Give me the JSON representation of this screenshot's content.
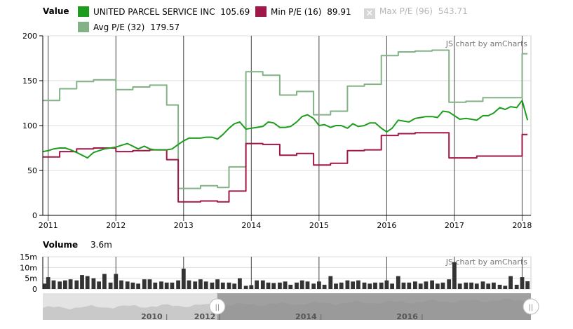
{
  "legend": {
    "value_label": "Value",
    "items": [
      {
        "label": "UNITED PARCEL SERVICE INC",
        "value": "105.69",
        "color": "#1e9c1e",
        "enabled": true
      },
      {
        "label": "Min P/E (16)",
        "value": "89.91",
        "color": "#a0174a",
        "enabled": true
      },
      {
        "label": "Max P/E (96)",
        "value": "543.71",
        "color": "#cccccc",
        "enabled": false
      },
      {
        "label": "Avg P/E (32)",
        "value": "179.57",
        "color": "#82b285",
        "enabled": true
      }
    ]
  },
  "credit": "JS chart by amCharts",
  "volume": {
    "label": "Volume",
    "value": "3.6m"
  },
  "chart_data": [
    {
      "type": "line",
      "title": "",
      "xlabel": "",
      "ylabel": "",
      "xlim": [
        2010.92,
        2018.13
      ],
      "ylim": [
        0,
        200
      ],
      "yticks": [
        "0",
        "50",
        "100",
        "150",
        "200"
      ],
      "xticks": [
        "2011",
        "2012",
        "2013",
        "2014",
        "2015",
        "2016",
        "2017",
        "2018"
      ],
      "grid": true,
      "step_series": [
        "Min P/E (16)",
        "Avg P/E (32)"
      ],
      "x": [
        2010.92,
        2011.0,
        2011.08,
        2011.17,
        2011.25,
        2011.33,
        2011.42,
        2011.5,
        2011.58,
        2011.67,
        2011.75,
        2011.83,
        2011.92,
        2012.0,
        2012.08,
        2012.17,
        2012.25,
        2012.33,
        2012.42,
        2012.5,
        2012.58,
        2012.67,
        2012.75,
        2012.83,
        2012.92,
        2013.0,
        2013.08,
        2013.17,
        2013.25,
        2013.33,
        2013.42,
        2013.5,
        2013.58,
        2013.67,
        2013.75,
        2013.83,
        2013.92,
        2014.0,
        2014.08,
        2014.17,
        2014.25,
        2014.33,
        2014.42,
        2014.5,
        2014.58,
        2014.67,
        2014.75,
        2014.83,
        2014.92,
        2015.0,
        2015.08,
        2015.17,
        2015.25,
        2015.33,
        2015.42,
        2015.5,
        2015.58,
        2015.67,
        2015.75,
        2015.83,
        2015.92,
        2016.0,
        2016.08,
        2016.17,
        2016.25,
        2016.33,
        2016.42,
        2016.5,
        2016.58,
        2016.67,
        2016.75,
        2016.83,
        2016.92,
        2017.0,
        2017.08,
        2017.17,
        2017.25,
        2017.33,
        2017.42,
        2017.5,
        2017.58,
        2017.67,
        2017.75,
        2017.83,
        2017.92,
        2018.0,
        2018.08
      ],
      "series": [
        {
          "name": "UNITED PARCEL SERVICE INC",
          "color": "#1e9c1e",
          "values": [
            71,
            72,
            74,
            75,
            75,
            73,
            70,
            67,
            64,
            70,
            72,
            74,
            75,
            76,
            78,
            80,
            77,
            74,
            77,
            74,
            73,
            73,
            73,
            74,
            79,
            83,
            86,
            86,
            86,
            87,
            87,
            85,
            90,
            97,
            102,
            104,
            96,
            97,
            98,
            99,
            104,
            103,
            98,
            98,
            99,
            104,
            110,
            112,
            108,
            100,
            101,
            98,
            100,
            100,
            97,
            102,
            99,
            100,
            103,
            103,
            97,
            93,
            97,
            106,
            105,
            104,
            108,
            109,
            110,
            110,
            109,
            116,
            115,
            111,
            107,
            108,
            107,
            106,
            111,
            111,
            114,
            120,
            118,
            121,
            120,
            128,
            106
          ]
        },
        {
          "name": "Min P/E (16)",
          "color": "#a0174a",
          "values": [
            65,
            65,
            65,
            71,
            71,
            71,
            74,
            74,
            74,
            75,
            75,
            75,
            75,
            71,
            71,
            71,
            72,
            72,
            72,
            73,
            73,
            73,
            62,
            62,
            15,
            15,
            15,
            15,
            16,
            16,
            16,
            15,
            15,
            27,
            27,
            27,
            80,
            80,
            80,
            79,
            79,
            79,
            67,
            67,
            67,
            69,
            69,
            69,
            56,
            56,
            56,
            58,
            58,
            58,
            72,
            72,
            72,
            73,
            73,
            73,
            89,
            89,
            89,
            91,
            91,
            91,
            92,
            92,
            92,
            92,
            92,
            92,
            64,
            64,
            64,
            64,
            64,
            66,
            66,
            66,
            66,
            66,
            66,
            66,
            66,
            90,
            90
          ]
        },
        {
          "name": "Avg P/E (32)",
          "color": "#82b285",
          "values": [
            128,
            128,
            128,
            141,
            141,
            141,
            149,
            149,
            149,
            151,
            151,
            151,
            151,
            140,
            140,
            140,
            143,
            143,
            143,
            145,
            145,
            145,
            123,
            123,
            30,
            30,
            30,
            30,
            33,
            33,
            33,
            31,
            31,
            54,
            54,
            54,
            160,
            160,
            160,
            156,
            156,
            156,
            134,
            134,
            134,
            138,
            138,
            138,
            112,
            112,
            112,
            116,
            116,
            116,
            144,
            144,
            144,
            146,
            146,
            146,
            178,
            178,
            178,
            182,
            182,
            182,
            183,
            183,
            183,
            184,
            184,
            184,
            126,
            126,
            126,
            127,
            127,
            127,
            131,
            131,
            131,
            131,
            131,
            131,
            131,
            180,
            180
          ]
        }
      ]
    },
    {
      "type": "bar",
      "title": "",
      "ylabel": "",
      "ylim": [
        0,
        15
      ],
      "yticks": [
        "0",
        "5m",
        "10m",
        "15m"
      ],
      "color": "#333333",
      "x": [
        2010.92,
        2011.0,
        2011.08,
        2011.17,
        2011.25,
        2011.33,
        2011.42,
        2011.5,
        2011.58,
        2011.67,
        2011.75,
        2011.83,
        2011.92,
        2012.0,
        2012.08,
        2012.17,
        2012.25,
        2012.33,
        2012.42,
        2012.5,
        2012.58,
        2012.67,
        2012.75,
        2012.83,
        2012.92,
        2013.0,
        2013.08,
        2013.17,
        2013.25,
        2013.33,
        2013.42,
        2013.5,
        2013.58,
        2013.67,
        2013.75,
        2013.83,
        2013.92,
        2014.0,
        2014.08,
        2014.17,
        2014.25,
        2014.33,
        2014.42,
        2014.5,
        2014.58,
        2014.67,
        2014.75,
        2014.83,
        2014.92,
        2015.0,
        2015.08,
        2015.17,
        2015.25,
        2015.33,
        2015.42,
        2015.5,
        2015.58,
        2015.67,
        2015.75,
        2015.83,
        2015.92,
        2016.0,
        2016.08,
        2016.17,
        2016.25,
        2016.33,
        2016.42,
        2016.5,
        2016.58,
        2016.67,
        2016.75,
        2016.83,
        2016.92,
        2017.0,
        2017.08,
        2017.17,
        2017.25,
        2017.33,
        2017.42,
        2017.5,
        2017.58,
        2017.67,
        2017.75,
        2017.83,
        2017.92,
        2018.0,
        2018.08
      ],
      "values": [
        2.5,
        5.5,
        4,
        3.5,
        4,
        4.5,
        4,
        6.5,
        6,
        5,
        3.5,
        7,
        3,
        7,
        4,
        3.5,
        3,
        2.5,
        4.5,
        4.5,
        3,
        3.5,
        3,
        3,
        4,
        9.5,
        4,
        3.5,
        4.5,
        3.5,
        3,
        4.5,
        3,
        3,
        2.5,
        5,
        1.5,
        1.8,
        4,
        4,
        3,
        2.8,
        3,
        3.5,
        2,
        3,
        4,
        3.5,
        2.5,
        3.5,
        2,
        6,
        2.5,
        3,
        4,
        3.5,
        4,
        3,
        2.5,
        3,
        3,
        4,
        2.5,
        6,
        3,
        3,
        3.5,
        2.5,
        3.5,
        4,
        2.5,
        3,
        4.5,
        12.5,
        2.5,
        3,
        3,
        2.5,
        3.5,
        2.5,
        3,
        2,
        1.5,
        6,
        2,
        5.5,
        3.6
      ]
    }
  ],
  "navigator": {
    "xticks": [
      "2010",
      "2012",
      "2014",
      "2016"
    ],
    "x": [
      2008.5,
      2010.95,
      2012.0,
      2014.0,
      2016.0,
      2018.15
    ],
    "selection": [
      2010.92,
      2018.15
    ],
    "left_handle": "||",
    "right_handle": "||"
  }
}
